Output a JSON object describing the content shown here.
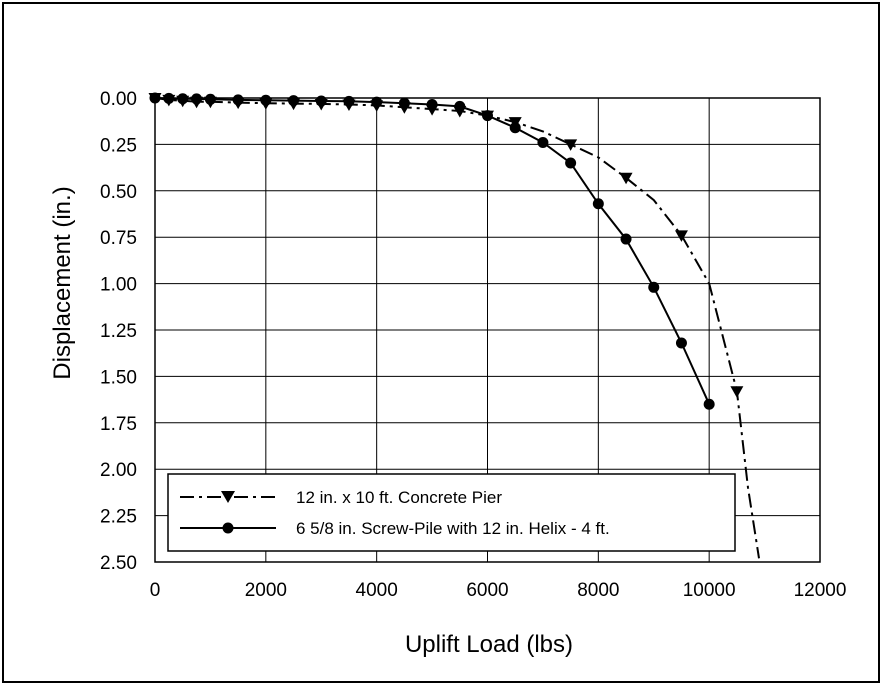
{
  "chart_data": {
    "type": "line",
    "title": "",
    "xlabel": "Uplift Load (lbs)",
    "ylabel": "Displacement (in.)",
    "xlim": [
      0,
      12000
    ],
    "ylim": [
      0,
      2.5
    ],
    "y_inverted": true,
    "grid": true,
    "x_ticks": [
      "0",
      "2000",
      "4000",
      "6000",
      "8000",
      "10000",
      "12000"
    ],
    "y_ticks": [
      "0.00",
      "0.25",
      "0.50",
      "0.75",
      "1.00",
      "1.25",
      "1.50",
      "1.75",
      "2.00",
      "2.25",
      "2.50"
    ],
    "legend_position": "bottom-left",
    "series": [
      {
        "name": "12 in. x 10 ft. Concrete Pier",
        "marker": "triangle-down",
        "line_style": "dash-dot",
        "color": "#000000",
        "points": [
          [
            0,
            0.0
          ],
          [
            250,
            0.01
          ],
          [
            500,
            0.015
          ],
          [
            750,
            0.02
          ],
          [
            1000,
            0.02
          ],
          [
            1500,
            0.025
          ],
          [
            2000,
            0.028
          ],
          [
            2500,
            0.03
          ],
          [
            3000,
            0.032
          ],
          [
            3500,
            0.035
          ],
          [
            4000,
            0.04
          ],
          [
            4500,
            0.05
          ],
          [
            5000,
            0.06
          ],
          [
            5500,
            0.07
          ],
          [
            6000,
            0.095
          ],
          [
            6500,
            0.13
          ],
          [
            7000,
            0.18
          ],
          [
            7500,
            0.25
          ],
          [
            8000,
            0.32
          ],
          [
            8500,
            0.43
          ],
          [
            9000,
            0.55
          ],
          [
            9500,
            0.74
          ],
          [
            10000,
            1.0
          ],
          [
            10500,
            1.58
          ],
          [
            10700,
            2.1
          ],
          [
            10900,
            2.48
          ]
        ],
        "marked_points": [
          [
            0,
            0.0
          ],
          [
            250,
            0.01
          ],
          [
            500,
            0.015
          ],
          [
            750,
            0.02
          ],
          [
            1000,
            0.02
          ],
          [
            1500,
            0.025
          ],
          [
            2000,
            0.028
          ],
          [
            2500,
            0.03
          ],
          [
            3000,
            0.032
          ],
          [
            3500,
            0.035
          ],
          [
            4000,
            0.04
          ],
          [
            4500,
            0.05
          ],
          [
            5000,
            0.06
          ],
          [
            5500,
            0.07
          ],
          [
            6000,
            0.095
          ],
          [
            6500,
            0.13
          ],
          [
            7500,
            0.25
          ],
          [
            8500,
            0.43
          ],
          [
            9500,
            0.74
          ],
          [
            10500,
            1.58
          ]
        ]
      },
      {
        "name": "6 5/8 in. Screw-Pile with 12 in. Helix - 4 ft.",
        "marker": "circle",
        "line_style": "solid",
        "color": "#000000",
        "points": [
          [
            0,
            0.0
          ],
          [
            250,
            0.002
          ],
          [
            500,
            0.004
          ],
          [
            750,
            0.005
          ],
          [
            1000,
            0.007
          ],
          [
            1500,
            0.01
          ],
          [
            2000,
            0.012
          ],
          [
            2500,
            0.014
          ],
          [
            3000,
            0.016
          ],
          [
            3500,
            0.018
          ],
          [
            4000,
            0.022
          ],
          [
            4500,
            0.028
          ],
          [
            5000,
            0.035
          ],
          [
            5500,
            0.045
          ],
          [
            6000,
            0.095
          ],
          [
            6500,
            0.16
          ],
          [
            7000,
            0.24
          ],
          [
            7500,
            0.35
          ],
          [
            8000,
            0.57
          ],
          [
            8500,
            0.76
          ],
          [
            9000,
            1.02
          ],
          [
            9500,
            1.32
          ],
          [
            10000,
            1.65
          ]
        ],
        "marked_points": [
          [
            0,
            0.0
          ],
          [
            250,
            0.002
          ],
          [
            500,
            0.004
          ],
          [
            750,
            0.005
          ],
          [
            1000,
            0.007
          ],
          [
            1500,
            0.01
          ],
          [
            2000,
            0.012
          ],
          [
            2500,
            0.014
          ],
          [
            3000,
            0.016
          ],
          [
            3500,
            0.018
          ],
          [
            4000,
            0.022
          ],
          [
            4500,
            0.028
          ],
          [
            5000,
            0.035
          ],
          [
            5500,
            0.045
          ],
          [
            6000,
            0.095
          ],
          [
            6500,
            0.16
          ],
          [
            7000,
            0.24
          ],
          [
            7500,
            0.35
          ],
          [
            8000,
            0.57
          ],
          [
            8500,
            0.76
          ],
          [
            9000,
            1.02
          ],
          [
            9500,
            1.32
          ],
          [
            10000,
            1.65
          ]
        ]
      }
    ]
  }
}
